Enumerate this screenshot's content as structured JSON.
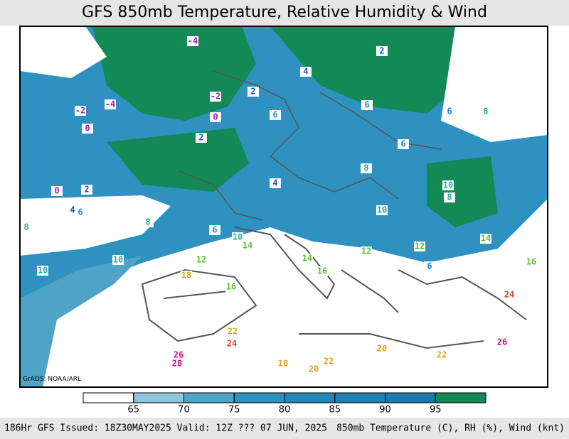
{
  "title": "GFS 850mb Temperature, Relative Humidity & Wind",
  "credit": "GrADS: NOAA/ARL",
  "colorbar": {
    "ticks": [
      65,
      70,
      75,
      80,
      85,
      90,
      95
    ],
    "colors": [
      "#ffffff",
      "#8ec5dc",
      "#4fa3c7",
      "#2e91bf",
      "#2386b6",
      "#1f7fb1",
      "#1c79ad",
      "#138a55"
    ]
  },
  "footer": {
    "left": "186Hr GFS Issued: 18Z30MAY2025 Valid: 12Z ??? 07 JUN, 2025",
    "right": "850mb Temperature (C), RH (%), Wind (knt)"
  },
  "contour_labels": [
    -4,
    -2,
    -2,
    -4,
    0,
    0,
    0,
    2,
    2,
    2,
    2,
    4,
    4,
    4,
    6,
    6,
    6,
    6,
    6,
    6,
    8,
    8,
    8,
    8,
    8,
    10,
    10,
    10,
    10,
    10,
    12,
    12,
    14,
    16,
    16,
    16,
    18,
    20,
    22,
    22,
    22,
    24,
    24,
    26,
    26,
    28,
    18,
    20,
    14,
    6,
    12,
    14
  ]
}
